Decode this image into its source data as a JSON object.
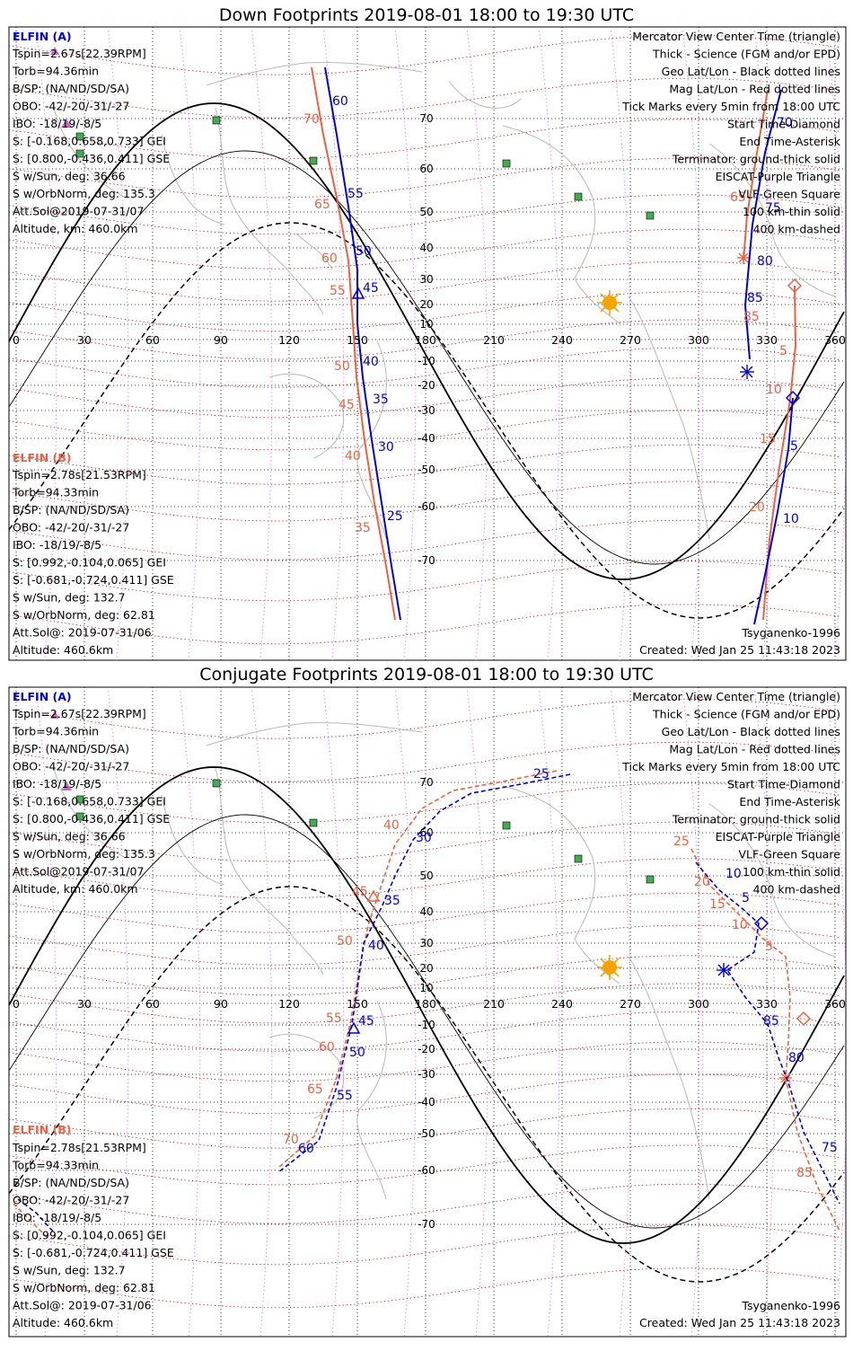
{
  "titles": {
    "down": "Down Footprints 2019-08-01 18:00 to 19:30 UTC",
    "conjugate": "Conjugate Footprints 2019-08-01 18:00 to 19:30 UTC"
  },
  "colors": {
    "elfin_a": "#0000dd",
    "elfin_b": "#f06040",
    "eiscat": "#cc66cc",
    "vlf": "#44aa55",
    "sun": "#f4a300",
    "terminator": "#000000",
    "geo_grid": "#000000",
    "mag_grid": "#e00000"
  },
  "elfin_a": {
    "header": "ELFIN (A)",
    "lines": [
      "Tspin=2.67s[22.39RPM]",
      "Torb=94.36min",
      "B/SP: (NA/ND/SD/SA)",
      "OBO: -42/-20/-31/-27",
      "IBO: -18/19/-8/5",
      "S: [-0.168,0.658,0.733] GEI",
      "S: [0.800,-0.436,0.411] GSE",
      "S w/Sun, deg: 36.66",
      "S w/OrbNorm, deg: 135.3",
      "Att.Sol@2019-07-31/07",
      "Altitude, km: 460.0km"
    ]
  },
  "elfin_b": {
    "header": "ELFIN (B)",
    "lines": [
      "Tspin=2.78s[21.53RPM]",
      "Torb=94.33min",
      "B/SP: (NA/ND/SD/SA)",
      "OBO: -42/-20/-31/-27",
      "IBO: -18/19/-8/5",
      "S: [0.992,-0.104,0.065] GEI",
      "S: [-0.681,-0.724,0.411] GSE",
      "S w/Sun, deg: 132.7",
      "S w/OrbNorm, deg: 62.81",
      "Att.Sol@: 2019-07-31/06",
      "Altitude: 460.6km"
    ]
  },
  "legend": [
    "Mercator View Center Time (triangle)",
    "Thick - Science (FGM and/or EPD)",
    "Geo Lat/Lon - Black dotted lines",
    "Mag Lat/Lon - Red dotted lines",
    "Tick Marks every 5min from 18:00 UTC",
    "Start Time-Diamond",
    "End Time-Asterisk",
    "Terminator: ground-thick solid",
    "EISCAT-Purple Triangle",
    "VLF-Green Square",
    "100 km-thin solid",
    "400 km-dashed"
  ],
  "footer": {
    "model": "Tsyganenko-1996",
    "created": "Created: Wed Jan 25 11:43:18 2023"
  },
  "lon_ticks": [
    "0",
    "30",
    "60",
    "90",
    "120",
    "150",
    "180",
    "210",
    "240",
    "270",
    "300",
    "330",
    "360"
  ],
  "lat_ticks": [
    "70",
    "60",
    "50",
    "40",
    "30",
    "20",
    "10",
    "-10",
    "-20",
    "-30",
    "-40",
    "-50",
    "-60",
    "-70"
  ],
  "down_labels": {
    "a": [
      "60",
      "55",
      "50",
      "45",
      "40",
      "35",
      "30",
      "25",
      "70",
      "75",
      "80",
      "85",
      "5",
      "10"
    ],
    "b": [
      "70",
      "65",
      "60",
      "55",
      "50",
      "45",
      "40",
      "35",
      "65",
      "85",
      "5",
      "10",
      "15",
      "20"
    ]
  },
  "conj_labels": {
    "a": [
      "25",
      "30",
      "35",
      "40",
      "45",
      "50",
      "55",
      "60",
      "10",
      "5",
      "85",
      "80",
      "75"
    ],
    "b": [
      "40",
      "45",
      "50",
      "55",
      "60",
      "65",
      "70",
      "25",
      "20",
      "15",
      "10",
      "5",
      "85"
    ]
  }
}
